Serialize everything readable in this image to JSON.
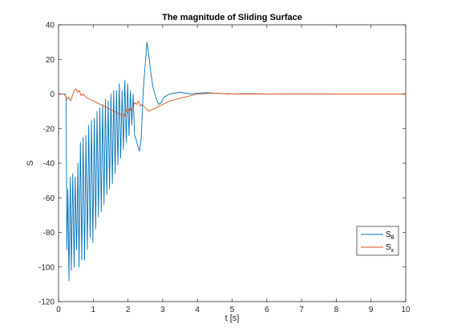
{
  "chart_data": {
    "type": "line",
    "title": "The magnitude of Sliding Surface",
    "xlabel": "t [s]",
    "ylabel": "S",
    "xlim": [
      0,
      10
    ],
    "ylim": [
      -120,
      40
    ],
    "xticks": [
      "0",
      "1",
      "2",
      "3",
      "4",
      "5",
      "6",
      "7",
      "8",
      "9",
      "10"
    ],
    "yticks": [
      "40",
      "20",
      "0",
      "-20",
      "-40",
      "-60",
      "-80",
      "-100",
      "-120"
    ],
    "grid": false,
    "legend_position": "bottom-right",
    "series": [
      {
        "name": "S_θ",
        "label_main": "S",
        "label_sub": "θ",
        "color": "#0072BD",
        "x": [
          0,
          0.18,
          0.22,
          0.24,
          0.27,
          0.3,
          0.34,
          0.37,
          0.41,
          0.45,
          0.48,
          0.52,
          0.56,
          0.59,
          0.63,
          0.67,
          0.71,
          0.75,
          0.79,
          0.83,
          0.87,
          0.91,
          0.95,
          0.99,
          1.03,
          1.07,
          1.11,
          1.15,
          1.19,
          1.23,
          1.27,
          1.31,
          1.35,
          1.39,
          1.43,
          1.47,
          1.51,
          1.55,
          1.59,
          1.63,
          1.67,
          1.71,
          1.75,
          1.79,
          1.83,
          1.87,
          1.91,
          1.95,
          1.99,
          2.03,
          2.07,
          2.11,
          2.15,
          2.19,
          2.23,
          2.28,
          2.33,
          2.38,
          2.44,
          2.5,
          2.55,
          2.6,
          2.66,
          2.72,
          2.8,
          2.88,
          2.96,
          3.03,
          3.2,
          3.5,
          3.8,
          4.0,
          4.3,
          4.6,
          5.0,
          5.5,
          6.0,
          7.0,
          8.0,
          9.0,
          10.0
        ],
        "values": [
          0,
          0,
          -2,
          -90,
          -55,
          -108,
          -48,
          -102,
          -46,
          -100,
          -48,
          -90,
          -40,
          -100,
          -28,
          -96,
          -25,
          -96,
          -24,
          -90,
          -18,
          -83,
          -15,
          -86,
          -14,
          -78,
          -10,
          -71,
          -8,
          -68,
          -6,
          -64,
          -3,
          -58,
          -4,
          -55,
          0,
          -52,
          2,
          -46,
          2,
          -41,
          6,
          -37,
          2,
          -32,
          8,
          -28,
          6,
          -24,
          2,
          -18,
          0,
          -24,
          -26,
          -30,
          -33,
          -26,
          2,
          18,
          30,
          22,
          12,
          4,
          -2,
          -6,
          -5,
          -2,
          0,
          1,
          0,
          0.5,
          0.8,
          0.3,
          0,
          0.2,
          0,
          0.1,
          0,
          0,
          0
        ]
      },
      {
        "name": "S_x",
        "label_main": "S",
        "label_sub": "x",
        "color": "#D95319",
        "x": [
          0,
          0.15,
          0.2,
          0.25,
          0.3,
          0.35,
          0.4,
          0.45,
          0.5,
          0.55,
          0.6,
          0.65,
          0.7,
          0.8,
          0.9,
          1.0,
          1.1,
          1.2,
          1.3,
          1.4,
          1.5,
          1.6,
          1.7,
          1.8,
          1.9,
          1.95,
          2.0,
          2.05,
          2.1,
          2.15,
          2.2,
          2.25,
          2.3,
          2.35,
          2.4,
          2.5,
          2.6,
          2.7,
          2.8,
          3.0,
          3.2,
          3.4,
          3.6,
          3.8,
          4.0,
          4.5,
          5.0,
          6.0,
          7.0,
          8.0,
          9.0,
          10.0
        ],
        "values": [
          0,
          0,
          -1,
          -3,
          -2,
          -4,
          -1,
          2,
          3,
          1,
          2,
          -1,
          0,
          -2,
          -3,
          -4,
          -5,
          -6,
          -7,
          -8,
          -9,
          -10,
          -11,
          -12,
          -13,
          -9,
          -11,
          -8,
          -10,
          -7,
          -5,
          -6,
          -4,
          -7,
          -6,
          -8,
          -10,
          -9,
          -8,
          -6,
          -4,
          -3,
          -2,
          -1,
          0,
          0.5,
          0,
          0,
          0,
          0,
          0,
          0
        ]
      }
    ]
  }
}
